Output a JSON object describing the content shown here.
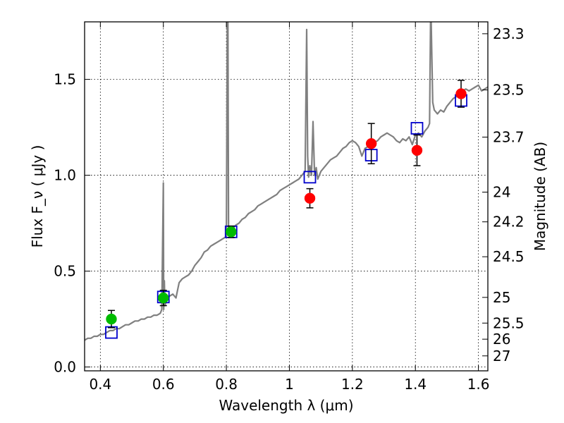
{
  "chart_data": {
    "type": "scatter",
    "xlabel": "Wavelength  λ (μm)",
    "ylabel": "Flux  F_ν  ( μJy )",
    "ylabel_right": "Magnitude (AB)",
    "xlim": [
      0.35,
      1.63
    ],
    "ylim": [
      -0.02,
      1.8
    ],
    "grid": true,
    "x_ticks": [
      0.4,
      0.6,
      0.8,
      1.0,
      1.2,
      1.4,
      1.6
    ],
    "x_tick_labels": [
      "0.4",
      "0.6",
      "0.8",
      "1",
      "1.2",
      "1.4",
      "1.6"
    ],
    "y_ticks": [
      0.0,
      0.5,
      1.0,
      1.5
    ],
    "y_tick_labels": [
      "0.0",
      "0.5",
      "1.0",
      "1.5"
    ],
    "right_ticks": [
      {
        "flux": 1.738,
        "label": "23.3"
      },
      {
        "flux": 1.445,
        "label": "23.5"
      },
      {
        "flux": 1.199,
        "label": "23.7"
      },
      {
        "flux": 0.912,
        "label": "24"
      },
      {
        "flux": 0.757,
        "label": "24.2"
      },
      {
        "flux": 0.575,
        "label": "24.5"
      },
      {
        "flux": 0.363,
        "label": "25"
      },
      {
        "flux": 0.229,
        "label": "25.5"
      },
      {
        "flux": 0.145,
        "label": "26"
      },
      {
        "flux": 0.058,
        "label": "27"
      }
    ],
    "series": [
      {
        "kind": "line",
        "color": "#808080",
        "x": [
          0.35,
          0.36,
          0.37,
          0.38,
          0.39,
          0.4,
          0.41,
          0.42,
          0.43,
          0.44,
          0.45,
          0.46,
          0.47,
          0.48,
          0.49,
          0.5,
          0.51,
          0.52,
          0.53,
          0.54,
          0.55,
          0.56,
          0.57,
          0.58,
          0.59,
          0.595,
          0.6,
          0.601,
          0.603,
          0.605,
          0.61,
          0.62,
          0.63,
          0.64,
          0.645,
          0.65,
          0.66,
          0.67,
          0.68,
          0.69,
          0.7,
          0.71,
          0.72,
          0.73,
          0.74,
          0.75,
          0.76,
          0.77,
          0.78,
          0.79,
          0.8,
          0.803,
          0.805,
          0.807,
          0.81,
          0.82,
          0.83,
          0.84,
          0.85,
          0.86,
          0.87,
          0.88,
          0.89,
          0.9,
          0.91,
          0.92,
          0.93,
          0.94,
          0.95,
          0.96,
          0.97,
          0.98,
          0.99,
          1.0,
          1.01,
          1.02,
          1.03,
          1.04,
          1.05,
          1.055,
          1.058,
          1.061,
          1.065,
          1.07,
          1.075,
          1.08,
          1.085,
          1.09,
          1.1,
          1.11,
          1.12,
          1.13,
          1.14,
          1.15,
          1.16,
          1.17,
          1.18,
          1.19,
          1.2,
          1.21,
          1.22,
          1.23,
          1.24,
          1.25,
          1.26,
          1.27,
          1.28,
          1.29,
          1.3,
          1.31,
          1.32,
          1.33,
          1.34,
          1.35,
          1.36,
          1.37,
          1.38,
          1.39,
          1.4,
          1.41,
          1.42,
          1.43,
          1.44,
          1.445,
          1.448,
          1.45,
          1.455,
          1.46,
          1.47,
          1.48,
          1.49,
          1.5,
          1.51,
          1.52,
          1.53,
          1.54,
          1.55,
          1.56,
          1.57,
          1.58,
          1.59,
          1.6,
          1.61,
          1.62,
          1.63
        ],
        "y": [
          0.14,
          0.15,
          0.15,
          0.16,
          0.16,
          0.17,
          0.17,
          0.18,
          0.19,
          0.19,
          0.2,
          0.2,
          0.21,
          0.22,
          0.22,
          0.23,
          0.24,
          0.24,
          0.25,
          0.25,
          0.26,
          0.26,
          0.27,
          0.27,
          0.28,
          0.3,
          0.96,
          0.3,
          0.45,
          0.32,
          0.35,
          0.37,
          0.38,
          0.36,
          0.4,
          0.44,
          0.46,
          0.47,
          0.48,
          0.5,
          0.53,
          0.55,
          0.57,
          0.6,
          0.61,
          0.63,
          0.64,
          0.65,
          0.66,
          0.67,
          0.68,
          1.8,
          1.8,
          0.7,
          0.71,
          0.72,
          0.74,
          0.75,
          0.77,
          0.78,
          0.8,
          0.81,
          0.82,
          0.84,
          0.85,
          0.86,
          0.87,
          0.88,
          0.89,
          0.9,
          0.92,
          0.93,
          0.94,
          0.95,
          0.96,
          0.97,
          0.98,
          1.0,
          1.02,
          1.76,
          1.1,
          0.99,
          1.05,
          1.0,
          1.28,
          1.0,
          1.04,
          0.98,
          1.02,
          1.04,
          1.06,
          1.08,
          1.09,
          1.1,
          1.12,
          1.14,
          1.15,
          1.17,
          1.18,
          1.17,
          1.15,
          1.1,
          1.14,
          1.15,
          1.16,
          1.17,
          1.18,
          1.2,
          1.21,
          1.22,
          1.21,
          1.2,
          1.18,
          1.17,
          1.19,
          1.18,
          1.2,
          1.16,
          1.21,
          1.22,
          1.2,
          1.23,
          1.25,
          1.27,
          1.8,
          1.8,
          1.38,
          1.34,
          1.32,
          1.34,
          1.33,
          1.36,
          1.38,
          1.4,
          1.41,
          1.43,
          1.44,
          1.45,
          1.44,
          1.45,
          1.46,
          1.47,
          1.44,
          1.45,
          1.46
        ]
      },
      {
        "kind": "model-photometry",
        "marker": "open-square",
        "color": "#0000cc",
        "x": [
          0.435,
          0.6,
          0.815,
          1.065,
          1.26,
          1.405,
          1.545
        ],
        "y": [
          0.18,
          0.365,
          0.705,
          0.99,
          1.105,
          1.245,
          1.39
        ]
      },
      {
        "kind": "observed",
        "marker": "filled-circle",
        "color": "#00bb00",
        "x": [
          0.435,
          0.6,
          0.815
        ],
        "y": [
          0.25,
          0.36,
          0.705
        ],
        "err": [
          0.045,
          0.04,
          0.03
        ]
      },
      {
        "kind": "observed",
        "marker": "filled-circle",
        "color": "#ff0000",
        "x": [
          1.065,
          1.26,
          1.405,
          1.545
        ],
        "y": [
          0.88,
          1.165,
          1.13,
          1.425
        ],
        "err": [
          0.05,
          0.105,
          0.08,
          0.07
        ]
      }
    ]
  }
}
